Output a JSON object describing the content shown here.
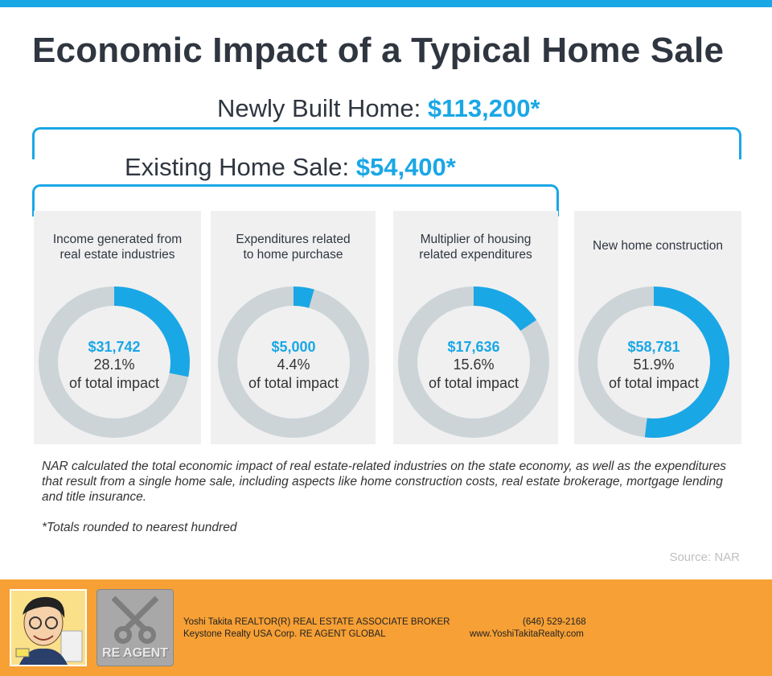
{
  "title": "Economic Impact of a Typical Home Sale",
  "newly_built": {
    "label": "Newly Built Home: ",
    "value": "$113,200*"
  },
  "existing": {
    "label": "Existing Home Sale: ",
    "value": "$54,400*"
  },
  "colors": {
    "accent": "#1aa7e6",
    "track": "#ccd4d8",
    "panel": "#f0f0f0",
    "footer": "#f7a035"
  },
  "chart_data": {
    "type": "pie",
    "series": [
      {
        "name": "Income generated from real estate industries",
        "label_lines": [
          "Income generated from",
          "real estate industries"
        ],
        "amount": "$31,742",
        "pct_label": "28.1%",
        "value": 28.1
      },
      {
        "name": "Expenditures related to home purchase",
        "label_lines": [
          "Expenditures related",
          "to home purchase"
        ],
        "amount": "$5,000",
        "pct_label": "4.4%",
        "value": 4.4
      },
      {
        "name": "Multiplier of housing related expenditures",
        "label_lines": [
          "Multiplier of housing",
          "related expenditures"
        ],
        "amount": "$17,636",
        "pct_label": "15.6%",
        "value": 15.6
      },
      {
        "name": "New home construction",
        "label_lines": [
          "New home construction"
        ],
        "amount": "$58,781",
        "pct_label": "51.9%",
        "value": 51.9
      }
    ],
    "of_total": "of total impact"
  },
  "footnote": "NAR calculated the total economic impact of real estate-related industries on the state economy, as well as the expenditures that result from a single home sale, including aspects like home construction costs, real estate brokerage, mortgage lending and title insurance.",
  "totals_note": "*Totals rounded to nearest hundred",
  "source": "Source: NAR",
  "footer": {
    "logo_text": "RE AGENT",
    "agent_line1": "Yoshi Takita REALTOR(R) REAL ESTATE ASSOCIATE BROKER",
    "agent_line2": "Keystone Realty USA Corp.  RE AGENT GLOBAL",
    "phone": "(646) 529-2168",
    "website": "www.YoshiTakitaRealty.com"
  }
}
